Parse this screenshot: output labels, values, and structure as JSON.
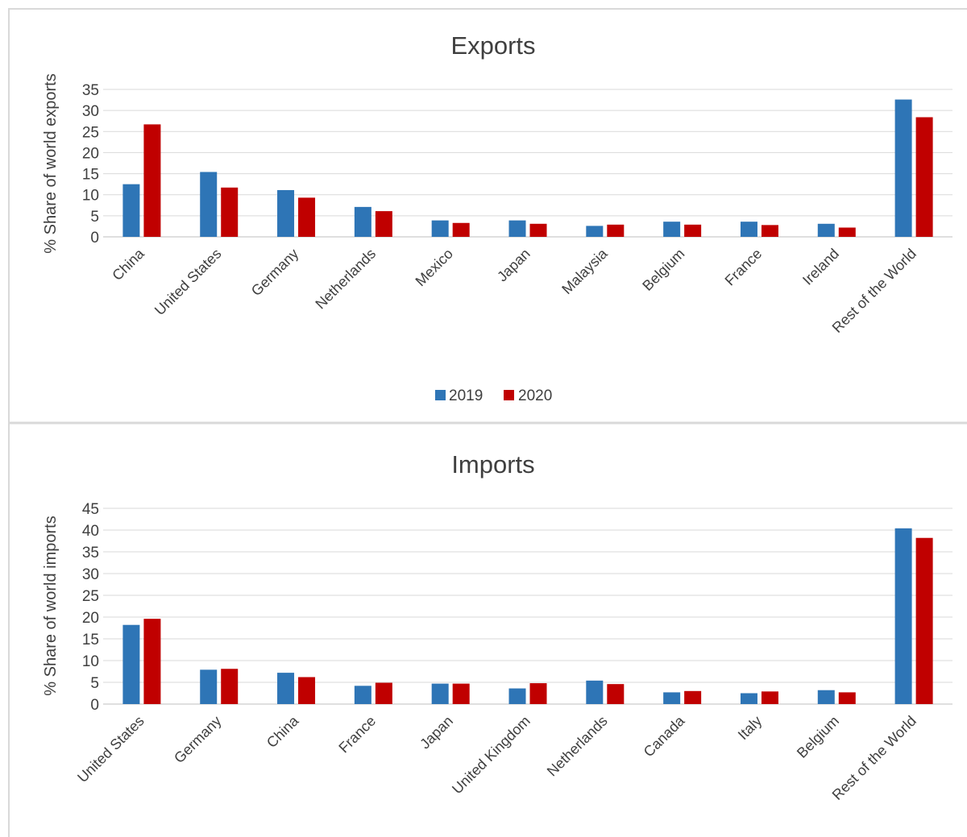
{
  "chart_data": [
    {
      "type": "bar",
      "title": "Exports",
      "xlabel": "",
      "ylabel": "% Share of world exports",
      "ylim": [
        0,
        35
      ],
      "yticks": [
        0,
        5,
        10,
        15,
        20,
        25,
        30,
        35
      ],
      "grid": true,
      "legend_placement": "bottom",
      "categories": [
        "China",
        "United States",
        "Germany",
        "Netherlands",
        "Mexico",
        "Japan",
        "Malaysia",
        "Belgium",
        "France",
        "Ireland",
        "Rest of the World"
      ],
      "series": [
        {
          "name": "2019",
          "color": "#2e75b6",
          "values": [
            12.5,
            15.4,
            11.1,
            7.1,
            3.9,
            3.9,
            2.6,
            3.6,
            3.6,
            3.1,
            32.6
          ]
        },
        {
          "name": "2020",
          "color": "#c00000",
          "values": [
            26.7,
            11.7,
            9.3,
            6.1,
            3.3,
            3.1,
            2.9,
            2.9,
            2.8,
            2.2,
            28.4
          ]
        }
      ]
    },
    {
      "type": "bar",
      "title": "Imports",
      "xlabel": "",
      "ylabel": "% Share of world imports",
      "ylim": [
        0,
        45
      ],
      "yticks": [
        0,
        5,
        10,
        15,
        20,
        25,
        30,
        35,
        40,
        45
      ],
      "grid": true,
      "categories": [
        "United States",
        "Germany",
        "China",
        "France",
        "Japan",
        "United Kingdom",
        "Netherlands",
        "Canada",
        "Italy",
        "Belgium",
        "Rest of the World"
      ],
      "series": [
        {
          "name": "2019",
          "color": "#2e75b6",
          "values": [
            18.2,
            7.9,
            7.2,
            4.2,
            4.7,
            3.6,
            5.4,
            2.7,
            2.5,
            3.2,
            40.4
          ]
        },
        {
          "name": "2020",
          "color": "#c00000",
          "values": [
            19.6,
            8.1,
            6.2,
            4.9,
            4.7,
            4.8,
            4.6,
            3.0,
            2.9,
            2.7,
            38.2
          ]
        }
      ]
    }
  ]
}
